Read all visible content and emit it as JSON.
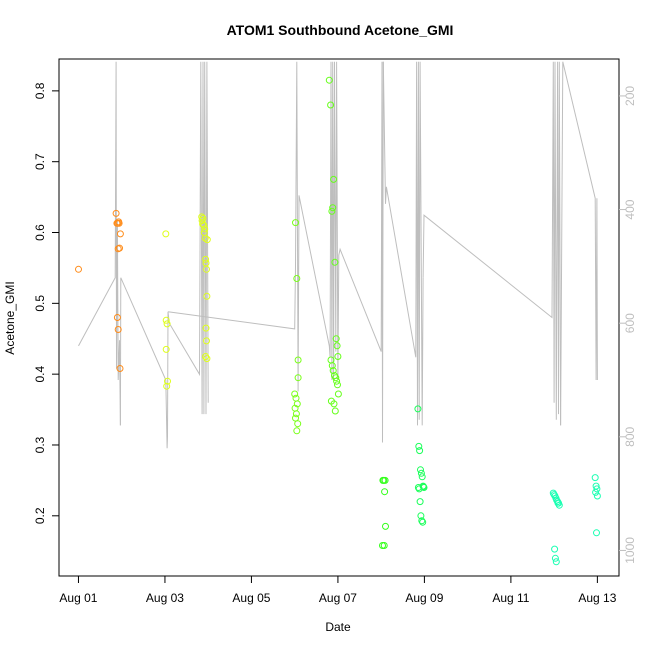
{
  "chart_data": {
    "type": "scatter",
    "title": "ATOM1 Southbound Acetone_GMI",
    "xlabel": "Date",
    "ylabel": "Acetone_GMI",
    "x_ticks": [
      "Aug 01",
      "Aug 03",
      "Aug 05",
      "Aug 07",
      "Aug 09",
      "Aug 11",
      "Aug 13"
    ],
    "x_tick_days": [
      1,
      3,
      5,
      7,
      9,
      11,
      13
    ],
    "xlim": [
      0.55,
      13.5
    ],
    "y_ticks": [
      0.2,
      0.3,
      0.4,
      0.5,
      0.6,
      0.7,
      0.8
    ],
    "ylim": [
      0.115,
      0.845
    ],
    "y2_ticks": [
      200,
      400,
      600,
      800,
      1000
    ],
    "y2lim": [
      135,
      1045
    ],
    "y2_reversed": true,
    "grid": false,
    "colors": {
      "altitude_line": "#bebebe",
      "orange": "#ff8c1a",
      "yellow": "#dfff1a",
      "green": "#7aff1a",
      "bright_green": "#33ff1a",
      "green2": "#1aff5a",
      "cyan": "#1affb2"
    },
    "series": [
      {
        "color": "#ff8c1a",
        "x": [
          1.0,
          1.87,
          1.89,
          1.91,
          1.93,
          1.92,
          1.95,
          1.97,
          1.9,
          1.92,
          1.96,
          1.94
        ],
        "y": [
          0.548,
          0.627,
          0.613,
          0.613,
          0.615,
          0.577,
          0.578,
          0.598,
          0.48,
          0.463,
          0.408,
          0.613
        ]
      },
      {
        "color": "#dfff1a",
        "x": [
          3.02,
          3.03,
          3.05,
          3.03,
          3.06,
          3.04,
          3.85,
          3.86,
          3.87,
          3.88,
          3.9,
          3.91,
          3.92,
          3.93,
          3.94,
          3.95,
          3.96,
          3.97,
          3.95,
          3.96,
          3.94,
          3.97,
          3.98
        ],
        "y": [
          0.598,
          0.476,
          0.471,
          0.435,
          0.39,
          0.383,
          0.622,
          0.617,
          0.612,
          0.62,
          0.61,
          0.6,
          0.605,
          0.592,
          0.562,
          0.557,
          0.548,
          0.51,
          0.465,
          0.447,
          0.425,
          0.422,
          0.59
        ]
      },
      {
        "color": "#7aff1a",
        "x": [
          6.02,
          6.05,
          6.08,
          6.0,
          6.03,
          6.06,
          6.01,
          6.04,
          6.02,
          6.07,
          6.05,
          6.08
        ],
        "y": [
          0.614,
          0.535,
          0.42,
          0.372,
          0.366,
          0.358,
          0.352,
          0.344,
          0.338,
          0.33,
          0.32,
          0.395
        ]
      },
      {
        "color": "#66ff1a",
        "x": [
          6.8,
          6.83,
          6.86,
          6.88,
          6.9,
          6.93,
          6.96,
          6.98,
          7.0,
          6.84,
          6.87,
          6.89,
          6.92,
          6.95,
          6.97,
          6.99,
          7.01,
          6.85,
          6.91,
          6.94
        ],
        "y": [
          0.815,
          0.78,
          0.63,
          0.635,
          0.675,
          0.558,
          0.45,
          0.44,
          0.425,
          0.42,
          0.412,
          0.405,
          0.398,
          0.395,
          0.39,
          0.385,
          0.372,
          0.362,
          0.358,
          0.348
        ]
      },
      {
        "color": "#33ff1a",
        "x": [
          8.04,
          8.06,
          8.08,
          8.1,
          8.03,
          8.07,
          8.09
        ],
        "y": [
          0.25,
          0.25,
          0.234,
          0.185,
          0.158,
          0.158,
          0.25
        ]
      },
      {
        "color": "#1aff5a",
        "x": [
          8.85,
          8.87,
          8.89,
          8.91,
          8.93,
          8.95,
          8.97,
          8.99,
          8.86,
          8.88,
          8.9,
          8.92,
          8.94,
          8.96,
          8.98
        ],
        "y": [
          0.351,
          0.298,
          0.292,
          0.265,
          0.26,
          0.255,
          0.242,
          0.24,
          0.24,
          0.238,
          0.22,
          0.2,
          0.193,
          0.191,
          0.241
        ]
      },
      {
        "color": "#1affb2",
        "x": [
          11.98,
          12.0,
          12.02,
          12.04,
          12.06,
          12.08,
          12.1,
          12.12,
          12.01,
          12.03,
          12.05,
          12.09,
          12.95,
          12.97,
          12.99,
          13.0,
          12.96,
          12.98
        ],
        "y": [
          0.232,
          0.23,
          0.228,
          0.225,
          0.222,
          0.22,
          0.218,
          0.215,
          0.153,
          0.14,
          0.135,
          0.218,
          0.254,
          0.242,
          0.238,
          0.228,
          0.233,
          0.176
        ]
      }
    ],
    "altitude_segments": [
      [
        [
          1.0,
          640
        ],
        [
          1.85,
          520
        ],
        [
          1.87,
          140
        ],
        [
          1.88,
          680
        ],
        [
          1.9,
          420
        ],
        [
          1.92,
          700
        ],
        [
          1.95,
          630
        ],
        [
          1.97,
          780
        ]
      ],
      [
        [
          1.97,
          780
        ],
        [
          1.98,
          520
        ],
        [
          3.02,
          700
        ],
        [
          3.05,
          820
        ],
        [
          3.06,
          800
        ],
        [
          3.07,
          580
        ],
        [
          3.1,
          600
        ],
        [
          3.8,
          690
        ],
        [
          3.83,
          140
        ],
        [
          3.86,
          760
        ],
        [
          3.88,
          140
        ],
        [
          3.9,
          760
        ],
        [
          3.92,
          140
        ],
        [
          3.95,
          760
        ],
        [
          3.97,
          140
        ],
        [
          4.0,
          740
        ]
      ],
      [
        [
          3.07,
          580
        ],
        [
          6.0,
          610
        ],
        [
          6.02,
          500
        ],
        [
          6.05,
          140
        ],
        [
          6.08,
          720
        ],
        [
          6.1,
          375
        ],
        [
          6.8,
          640
        ],
        [
          6.82,
          660
        ],
        [
          6.84,
          140
        ],
        [
          6.86,
          700
        ],
        [
          6.88,
          140
        ],
        [
          6.9,
          700
        ],
        [
          6.92,
          140
        ],
        [
          6.95,
          650
        ],
        [
          6.97,
          140
        ],
        [
          7.0,
          700
        ]
      ],
      [
        [
          7.0,
          700
        ],
        [
          7.02,
          480
        ],
        [
          7.05,
          470
        ],
        [
          8.0,
          650
        ],
        [
          8.02,
          140
        ],
        [
          8.03,
          810
        ],
        [
          8.05,
          140
        ]
      ],
      [
        [
          8.05,
          140
        ],
        [
          8.1,
          390
        ],
        [
          8.12,
          360
        ],
        [
          8.8,
          660
        ],
        [
          8.82,
          140
        ],
        [
          8.84,
          780
        ],
        [
          8.86,
          140
        ],
        [
          8.88,
          770
        ],
        [
          8.9,
          140
        ],
        [
          8.95,
          780
        ],
        [
          8.97,
          520
        ]
      ],
      [
        [
          8.97,
          520
        ],
        [
          8.99,
          410
        ],
        [
          11.95,
          590
        ],
        [
          11.98,
          140
        ],
        [
          12.0,
          740
        ],
        [
          12.02,
          140
        ],
        [
          12.05,
          770
        ],
        [
          12.08,
          140
        ],
        [
          12.1,
          760
        ],
        [
          12.12,
          140
        ],
        [
          12.15,
          780
        ]
      ],
      [
        [
          12.15,
          780
        ],
        [
          12.2,
          140
        ],
        [
          12.95,
          380
        ],
        [
          12.97,
          700
        ],
        [
          12.99,
          380
        ],
        [
          13.0,
          700
        ]
      ]
    ]
  }
}
